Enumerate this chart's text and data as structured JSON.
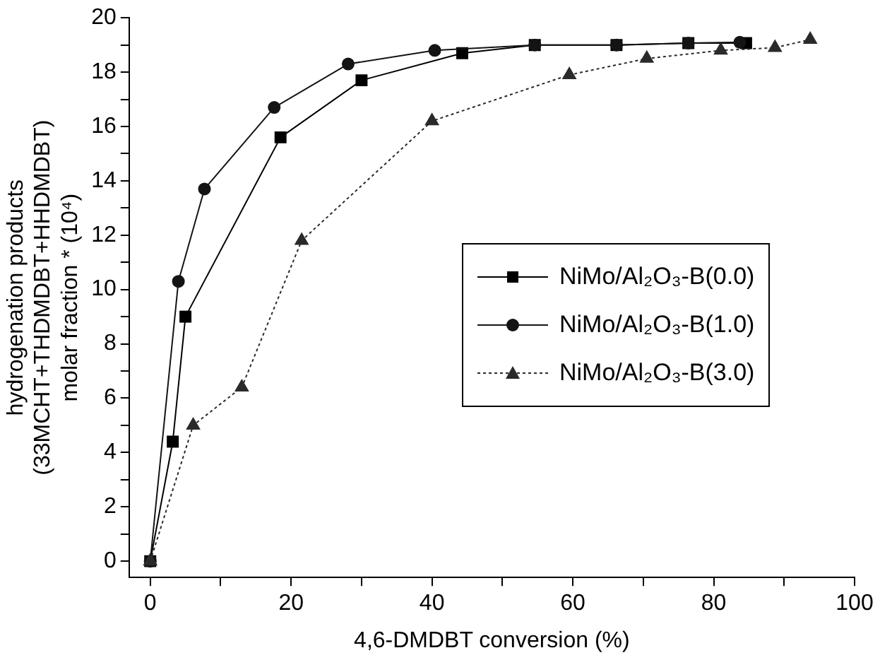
{
  "chart_data": {
    "type": "line",
    "xlabel": "4,6-DMDBT conversion (%)",
    "ylabel": "hydrogenation products\n(33MCHT+THDMDBT+HHDMDBT)\nmolar fraction * (10⁴)",
    "xlim": [
      -3,
      100
    ],
    "xticks": [
      0,
      {
        "value": 10,
        "label": null
      },
      20,
      {
        "value": 30,
        "label": null
      },
      40,
      {
        "value": 50,
        "label": null
      },
      60,
      {
        "value": 70,
        "label": null
      },
      80,
      {
        "value": 90,
        "label": null
      },
      100
    ],
    "ylim": [
      -0.6,
      20
    ],
    "yticks": [
      0,
      {
        "value": 1,
        "label": null
      },
      2,
      {
        "value": 3,
        "label": null
      },
      4,
      {
        "value": 5,
        "label": null
      },
      6,
      {
        "value": 7,
        "label": null
      },
      8,
      {
        "value": 9,
        "label": null
      },
      10,
      {
        "value": 11,
        "label": null
      },
      12,
      {
        "value": 13,
        "label": null
      },
      14,
      {
        "value": 15,
        "label": null
      },
      16,
      {
        "value": 17,
        "label": null
      },
      18,
      {
        "value": 19,
        "label": null
      },
      20
    ],
    "grid": false,
    "legend": "right",
    "series": [
      {
        "name": "NiMo/Al₂O₃-B(0.0)",
        "color": "#000000",
        "marker": "square",
        "line_style": "solid",
        "x": [
          0,
          3.2,
          5.0,
          18.5,
          30.0,
          44.3,
          54.6,
          66.2,
          76.4,
          84.6
        ],
        "values": [
          0,
          4.4,
          9.0,
          15.6,
          17.7,
          18.7,
          19.0,
          19.0,
          19.07,
          19.07
        ]
      },
      {
        "name": "NiMo/Al₂O₃-B(1.0)",
        "color": "#141414",
        "marker": "circle",
        "line_style": "solid",
        "x": [
          0,
          4.0,
          7.7,
          17.6,
          28.1,
          40.4,
          54.6,
          66.2,
          76.4,
          83.7
        ],
        "values": [
          0,
          10.3,
          13.7,
          16.7,
          18.3,
          18.8,
          19.0,
          19.0,
          19.07,
          19.1
        ]
      },
      {
        "name": "NiMo/Al₂O₃-B(3.0)",
        "color": "#2a2a2a",
        "marker": "triangle",
        "line_style": "dotted",
        "x": [
          0,
          6.1,
          13.0,
          21.5,
          40.0,
          59.5,
          70.5,
          81.0,
          88.7,
          93.7
        ],
        "values": [
          0,
          5.0,
          6.4,
          11.8,
          16.2,
          17.9,
          18.5,
          18.8,
          18.9,
          19.2
        ]
      }
    ]
  }
}
